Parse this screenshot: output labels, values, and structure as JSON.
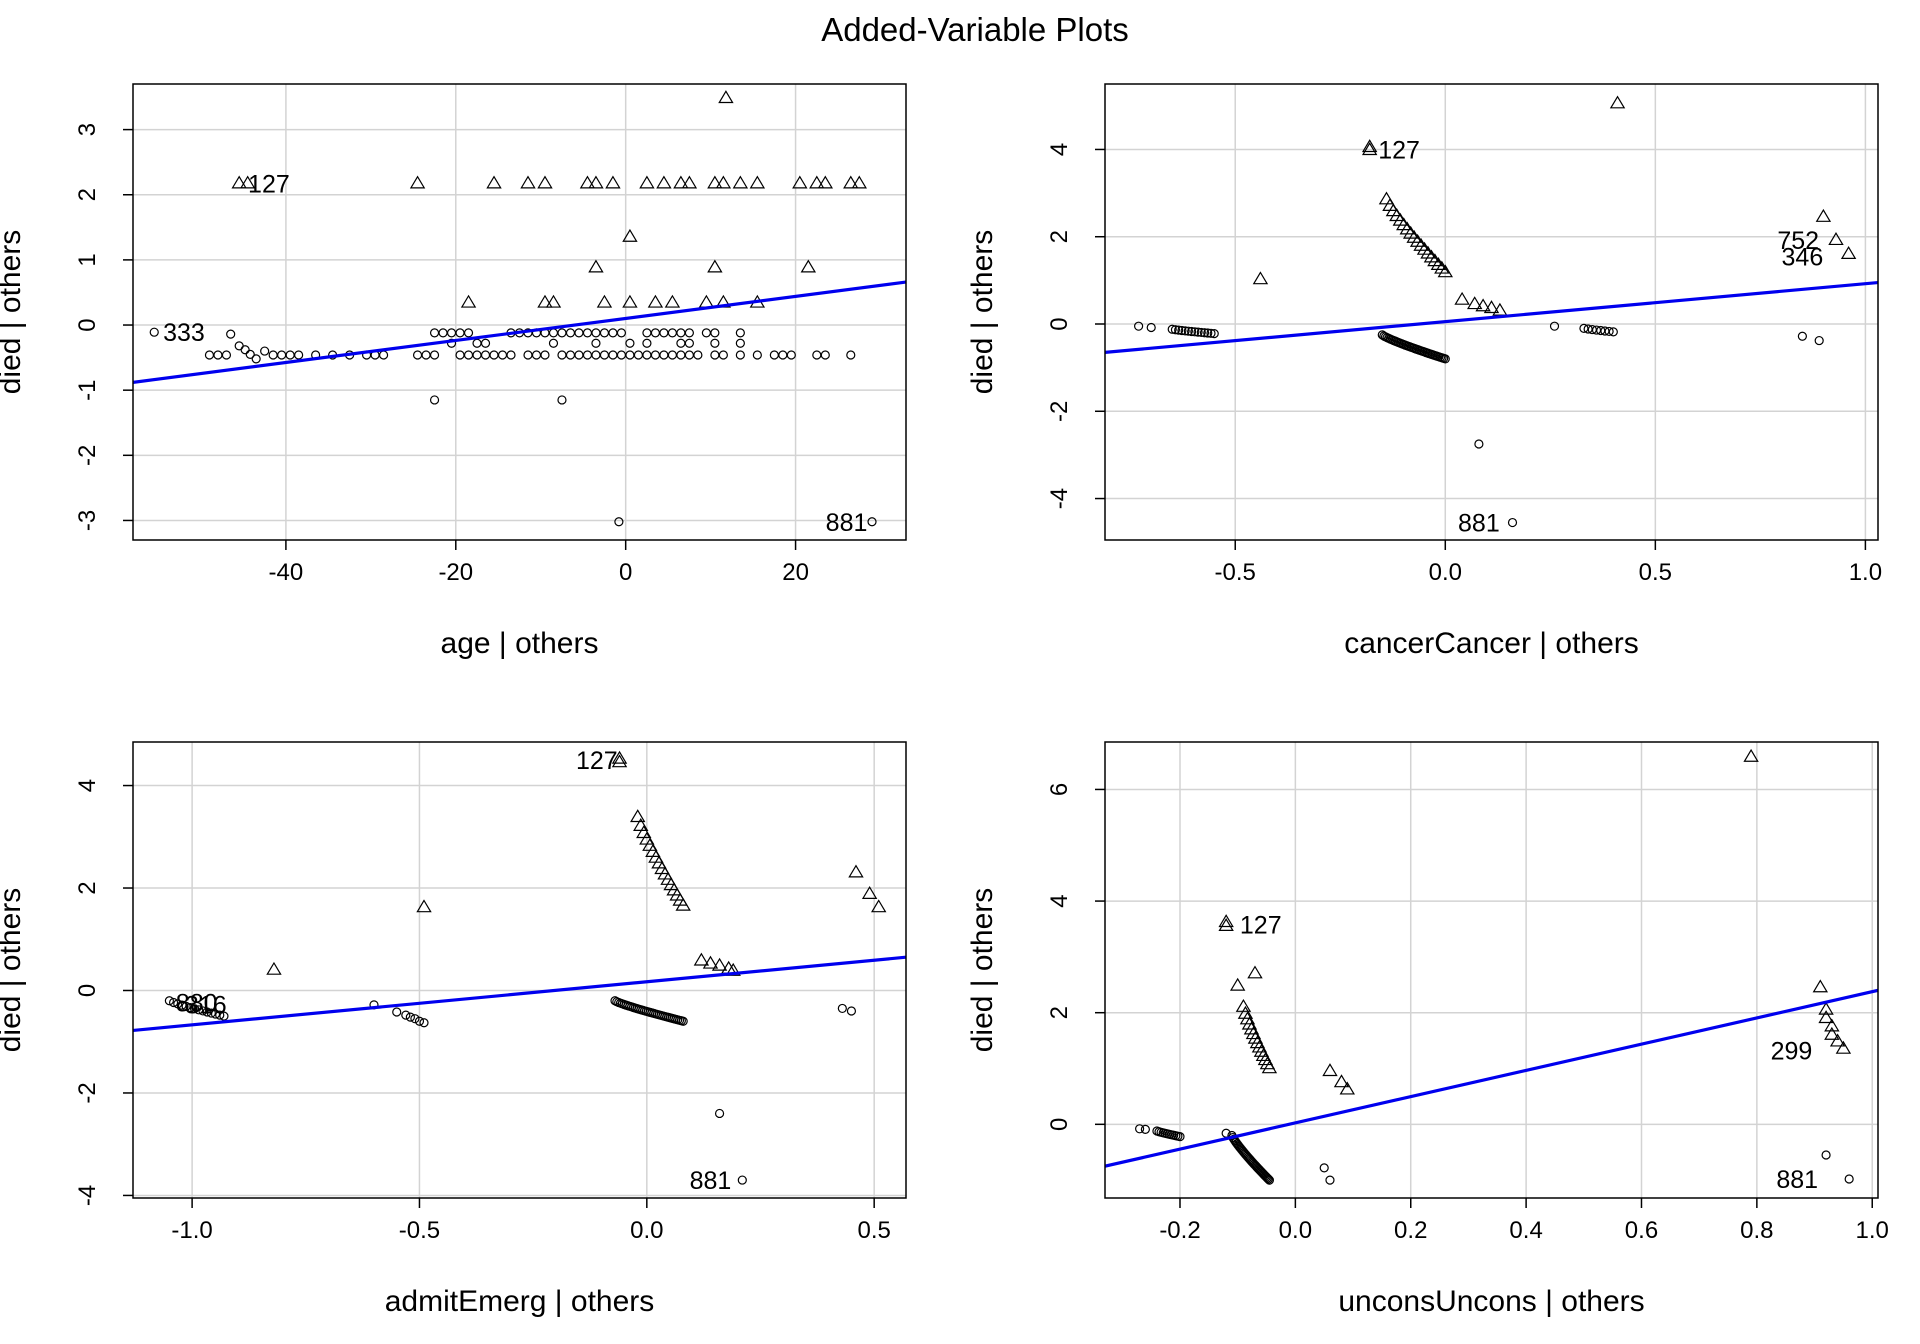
{
  "figure": {
    "title": "Added-Variable Plots",
    "marker_color": "#000000",
    "line_color": "#0000ee",
    "grid_color": "#d3d3d3",
    "legend": "none"
  },
  "chart_data": [
    {
      "type": "scatter",
      "xlabel": "age | others",
      "ylabel": "died  | others",
      "xlim": [
        -58,
        33
      ],
      "ylim": [
        -3.3,
        3.7
      ],
      "xticks": [
        -40,
        -20,
        0,
        20
      ],
      "yticks": [
        -3,
        -2,
        -1,
        0,
        1,
        2,
        3
      ],
      "grid": true,
      "fit_line": {
        "x": [
          -58,
          33
        ],
        "y": [
          -0.88,
          0.66
        ]
      },
      "annotations": [
        {
          "text": "127",
          "x": -42,
          "y": 2.17
        },
        {
          "text": "333",
          "x": -52,
          "y": -0.11
        },
        {
          "text": "881",
          "x": 26,
          "y": -3.02
        }
      ],
      "points": [
        {
          "x": -45.5,
          "y": 2.17,
          "marker": "triangle"
        },
        {
          "x": -44.5,
          "y": 2.17,
          "marker": "triangle"
        },
        {
          "x": -24.5,
          "y": 2.17,
          "marker": "triangle"
        },
        {
          "x": -15.5,
          "y": 2.17,
          "marker": "triangle"
        },
        {
          "x": -11.5,
          "y": 2.17,
          "marker": "triangle"
        },
        {
          "x": -9.5,
          "y": 2.17,
          "marker": "triangle"
        },
        {
          "x": -4.5,
          "y": 2.17,
          "marker": "triangle"
        },
        {
          "x": -3.5,
          "y": 2.17,
          "marker": "triangle"
        },
        {
          "x": -1.5,
          "y": 2.17,
          "marker": "triangle"
        },
        {
          "x": 2.5,
          "y": 2.17,
          "marker": "triangle"
        },
        {
          "x": 4.5,
          "y": 2.17,
          "marker": "triangle"
        },
        {
          "x": 6.5,
          "y": 2.17,
          "marker": "triangle"
        },
        {
          "x": 7.5,
          "y": 2.17,
          "marker": "triangle"
        },
        {
          "x": 10.5,
          "y": 2.17,
          "marker": "triangle"
        },
        {
          "x": 11.5,
          "y": 2.17,
          "marker": "triangle"
        },
        {
          "x": 13.5,
          "y": 2.17,
          "marker": "triangle"
        },
        {
          "x": 15.5,
          "y": 2.17,
          "marker": "triangle"
        },
        {
          "x": 20.5,
          "y": 2.17,
          "marker": "triangle"
        },
        {
          "x": 22.5,
          "y": 2.17,
          "marker": "triangle"
        },
        {
          "x": 23.5,
          "y": 2.17,
          "marker": "triangle"
        },
        {
          "x": 26.5,
          "y": 2.17,
          "marker": "triangle"
        },
        {
          "x": 27.5,
          "y": 2.17,
          "marker": "triangle"
        },
        {
          "x": 11.8,
          "y": 3.48,
          "marker": "triangle"
        },
        {
          "x": 0.5,
          "y": 1.35,
          "marker": "triangle"
        },
        {
          "x": -3.5,
          "y": 0.88,
          "marker": "triangle"
        },
        {
          "x": 10.5,
          "y": 0.88,
          "marker": "triangle"
        },
        {
          "x": 21.5,
          "y": 0.88,
          "marker": "triangle"
        },
        {
          "x": -18.5,
          "y": 0.34,
          "marker": "triangle"
        },
        {
          "x": -9.5,
          "y": 0.34,
          "marker": "triangle"
        },
        {
          "x": -8.5,
          "y": 0.34,
          "marker": "triangle"
        },
        {
          "x": -2.5,
          "y": 0.34,
          "marker": "triangle"
        },
        {
          "x": 0.5,
          "y": 0.34,
          "marker": "triangle"
        },
        {
          "x": 3.5,
          "y": 0.34,
          "marker": "triangle"
        },
        {
          "x": 5.5,
          "y": 0.34,
          "marker": "triangle"
        },
        {
          "x": 9.5,
          "y": 0.34,
          "marker": "triangle"
        },
        {
          "x": 11.5,
          "y": 0.34,
          "marker": "triangle"
        },
        {
          "x": 15.5,
          "y": 0.34,
          "marker": "triangle"
        },
        {
          "x": -45.5,
          "y": -0.32,
          "marker": "circle"
        },
        {
          "x": -44.8,
          "y": -0.38,
          "marker": "circle"
        },
        {
          "x": -44.2,
          "y": -0.45,
          "marker": "circle"
        },
        {
          "x": -43.5,
          "y": -0.52,
          "marker": "circle"
        },
        {
          "x": -46.5,
          "y": -0.14,
          "marker": "circle"
        },
        {
          "x": -47,
          "y": -0.46,
          "marker": "circle"
        },
        {
          "x": -48,
          "y": -0.46,
          "marker": "circle"
        },
        {
          "x": -49,
          "y": -0.46,
          "marker": "circle"
        },
        {
          "x": -42.5,
          "y": -0.4,
          "marker": "circle"
        },
        {
          "x": -41.5,
          "y": -0.46,
          "marker": "circle"
        },
        {
          "x": -55.5,
          "y": -0.11,
          "marker": "circle"
        },
        {
          "x": -22.5,
          "y": -1.15,
          "marker": "circle"
        },
        {
          "x": -7.5,
          "y": -1.15,
          "marker": "circle"
        },
        {
          "x": -0.8,
          "y": -3.02,
          "marker": "circle"
        },
        {
          "x": 29,
          "y": -3.02,
          "marker": "circle"
        }
      ],
      "circle_band_x": [
        -40.5,
        -39.5,
        -38.5,
        -36.5,
        -34.5,
        -32.5,
        -30.5,
        -29.5,
        -28.5,
        -24.5,
        -23.5,
        -22.5,
        -19.5,
        -18.5,
        -17.5,
        -16.5,
        -15.5,
        -14.5,
        -13.5,
        -11.5,
        -10.5,
        -9.5,
        -7.5,
        -6.5,
        -5.5,
        -4.5,
        -3.5,
        -2.5,
        -1.5,
        -0.5,
        0.5,
        1.5,
        2.5,
        3.5,
        4.5,
        5.5,
        6.5,
        7.5,
        8.5,
        10.5,
        11.5,
        13.5,
        15.5,
        17.5,
        18.5,
        19.5,
        22.5,
        23.5,
        26.5
      ],
      "circle_band_y": -0.46,
      "circle_row_x": [
        -22.5,
        -21.5,
        -20.5,
        -19.5,
        -18.5,
        -13.5,
        -12.5,
        -11.5,
        -10.5,
        -9.5,
        -8.5,
        -7.5,
        -6.5,
        -5.5,
        -4.5,
        -3.5,
        -2.5,
        -1.5,
        -0.5,
        2.5,
        3.5,
        4.5,
        5.5,
        6.5,
        7.5,
        9.5,
        10.5,
        13.5
      ],
      "circle_row_y": -0.12,
      "circle_row2_x": [
        -20.5,
        -17.5,
        -16.5,
        -8.5,
        -3.5,
        0.5,
        2.5,
        6.5,
        7.5,
        10.5,
        13.5
      ],
      "circle_row2_y": -0.28
    },
    {
      "type": "scatter",
      "xlabel": "cancerCancer | others",
      "ylabel": "died  | others",
      "xlim": [
        -0.81,
        1.03
      ],
      "ylim": [
        -4.95,
        5.5
      ],
      "xticks": [
        -0.5,
        0.0,
        0.5,
        1.0
      ],
      "yticks": [
        -4,
        -2,
        0,
        2,
        4
      ],
      "grid": true,
      "fit_line": {
        "x": [
          -0.81,
          1.03
        ],
        "y": [
          -0.65,
          0.95
        ]
      },
      "annotations": [
        {
          "text": "127",
          "x": -0.11,
          "y": 4.0
        },
        {
          "text": "752",
          "x": 0.84,
          "y": 1.92
        },
        {
          "text": "346",
          "x": 0.85,
          "y": 1.55
        },
        {
          "text": "881",
          "x": 0.08,
          "y": -4.55
        }
      ],
      "points": [
        {
          "x": -0.18,
          "y": 3.98,
          "marker": "triangle"
        },
        {
          "x": -0.18,
          "y": 4.05,
          "marker": "triangle"
        },
        {
          "x": 0.41,
          "y": 5.05,
          "marker": "triangle"
        },
        {
          "x": -0.44,
          "y": 1.02,
          "marker": "triangle"
        },
        {
          "x": 0.9,
          "y": 2.45,
          "marker": "triangle"
        },
        {
          "x": 0.93,
          "y": 1.92,
          "marker": "triangle"
        },
        {
          "x": 0.96,
          "y": 1.6,
          "marker": "triangle"
        },
        {
          "x": 0.04,
          "y": 0.55,
          "marker": "triangle"
        },
        {
          "x": 0.07,
          "y": 0.45,
          "marker": "triangle"
        },
        {
          "x": 0.09,
          "y": 0.4,
          "marker": "triangle"
        },
        {
          "x": 0.11,
          "y": 0.36,
          "marker": "triangle"
        },
        {
          "x": 0.13,
          "y": 0.3,
          "marker": "triangle"
        },
        {
          "x": -0.73,
          "y": -0.05,
          "marker": "circle"
        },
        {
          "x": -0.7,
          "y": -0.08,
          "marker": "circle"
        },
        {
          "x": 0.26,
          "y": -0.05,
          "marker": "circle"
        },
        {
          "x": 0.85,
          "y": -0.28,
          "marker": "circle"
        },
        {
          "x": 0.89,
          "y": -0.38,
          "marker": "circle"
        },
        {
          "x": 0.08,
          "y": -2.75,
          "marker": "circle"
        },
        {
          "x": 0.16,
          "y": -4.55,
          "marker": "circle"
        }
      ],
      "tri_arc": {
        "x_from": -0.14,
        "x_to": 0.0,
        "y_from": 2.85,
        "y_to": 1.18,
        "count": 18
      },
      "circ_arc": {
        "x_from": -0.15,
        "x_to": 0.0,
        "y_from": -0.25,
        "y_to": -0.8,
        "count": 40
      },
      "circ_cluster_left": {
        "x_from": -0.65,
        "x_to": -0.55,
        "y_from": -0.12,
        "y_to": -0.22,
        "count": 14
      },
      "circ_cluster_right": {
        "x_from": 0.33,
        "x_to": 0.4,
        "y_from": -0.1,
        "y_to": -0.18,
        "count": 8
      }
    },
    {
      "type": "scatter",
      "xlabel": "admitEmerg | others",
      "ylabel": "died  | others",
      "xlim": [
        -1.13,
        0.57
      ],
      "ylim": [
        -4.05,
        4.85
      ],
      "xticks": [
        -1.0,
        -0.5,
        0.0,
        0.5
      ],
      "yticks": [
        -4,
        -2,
        0,
        2,
        4
      ],
      "grid": true,
      "fit_line": {
        "x": [
          -1.13,
          0.57
        ],
        "y": [
          -0.78,
          0.65
        ]
      },
      "annotations": [
        {
          "text": "127",
          "x": -0.11,
          "y": 4.5
        },
        {
          "text": "880",
          "x": -0.99,
          "y": -0.23
        },
        {
          "text": "316",
          "x": -0.97,
          "y": -0.27
        },
        {
          "text": "881",
          "x": 0.14,
          "y": -3.7
        }
      ],
      "points": [
        {
          "x": -0.06,
          "y": 4.45,
          "marker": "triangle"
        },
        {
          "x": -0.06,
          "y": 4.52,
          "marker": "triangle"
        },
        {
          "x": -0.82,
          "y": 0.4,
          "marker": "triangle"
        },
        {
          "x": -0.49,
          "y": 1.62,
          "marker": "triangle"
        },
        {
          "x": 0.46,
          "y": 2.3,
          "marker": "triangle"
        },
        {
          "x": 0.49,
          "y": 1.88,
          "marker": "triangle"
        },
        {
          "x": 0.51,
          "y": 1.62,
          "marker": "triangle"
        },
        {
          "x": 0.12,
          "y": 0.58,
          "marker": "triangle"
        },
        {
          "x": 0.14,
          "y": 0.52,
          "marker": "triangle"
        },
        {
          "x": 0.16,
          "y": 0.48,
          "marker": "triangle"
        },
        {
          "x": 0.18,
          "y": 0.42,
          "marker": "triangle"
        },
        {
          "x": 0.19,
          "y": 0.38,
          "marker": "triangle"
        },
        {
          "x": -0.6,
          "y": -0.28,
          "marker": "circle"
        },
        {
          "x": -0.55,
          "y": -0.42,
          "marker": "circle"
        },
        {
          "x": -0.53,
          "y": -0.48,
          "marker": "circle"
        },
        {
          "x": -0.52,
          "y": -0.52,
          "marker": "circle"
        },
        {
          "x": -0.51,
          "y": -0.55,
          "marker": "circle"
        },
        {
          "x": -0.5,
          "y": -0.6,
          "marker": "circle"
        },
        {
          "x": -0.49,
          "y": -0.63,
          "marker": "circle"
        },
        {
          "x": 0.43,
          "y": -0.35,
          "marker": "circle"
        },
        {
          "x": 0.45,
          "y": -0.4,
          "marker": "circle"
        },
        {
          "x": 0.16,
          "y": -2.4,
          "marker": "circle"
        },
        {
          "x": 0.21,
          "y": -3.7,
          "marker": "circle"
        }
      ],
      "tri_arc": {
        "x_from": -0.02,
        "x_to": 0.08,
        "y_from": 3.38,
        "y_to": 1.65,
        "count": 16
      },
      "circ_arc": {
        "x_from": -0.07,
        "x_to": 0.08,
        "y_from": -0.2,
        "y_to": -0.6,
        "count": 38
      },
      "circ_cluster_left": {
        "x_from": -1.05,
        "x_to": -0.93,
        "y_from": -0.2,
        "y_to": -0.5,
        "count": 14
      },
      "circ_cluster_right": {
        "x_from": 0.0,
        "x_to": 0.0,
        "y_from": 0.0,
        "y_to": 0.0,
        "count": 0
      }
    },
    {
      "type": "scatter",
      "xlabel": "unconsUncons | others",
      "ylabel": "died  | others",
      "xlim": [
        -0.33,
        1.01
      ],
      "ylim": [
        -1.32,
        6.85
      ],
      "xticks": [
        -0.2,
        0.0,
        0.2,
        0.4,
        0.6,
        0.8,
        1.0
      ],
      "yticks": [
        0,
        2,
        4,
        6
      ],
      "grid": true,
      "fit_line": {
        "x": [
          -0.33,
          1.01
        ],
        "y": [
          -0.75,
          2.4
        ]
      },
      "annotations": [
        {
          "text": "127",
          "x": -0.06,
          "y": 3.58
        },
        {
          "text": "299",
          "x": 0.86,
          "y": 1.32
        },
        {
          "text": "881",
          "x": 0.87,
          "y": -0.98
        }
      ],
      "points": [
        {
          "x": -0.12,
          "y": 3.55,
          "marker": "triangle"
        },
        {
          "x": -0.12,
          "y": 3.62,
          "marker": "triangle"
        },
        {
          "x": 0.79,
          "y": 6.58,
          "marker": "triangle"
        },
        {
          "x": -0.1,
          "y": 2.48,
          "marker": "triangle"
        },
        {
          "x": -0.07,
          "y": 2.7,
          "marker": "triangle"
        },
        {
          "x": 0.06,
          "y": 0.95,
          "marker": "triangle"
        },
        {
          "x": 0.08,
          "y": 0.75,
          "marker": "triangle"
        },
        {
          "x": 0.09,
          "y": 0.62,
          "marker": "triangle"
        },
        {
          "x": 0.91,
          "y": 2.45,
          "marker": "triangle"
        },
        {
          "x": 0.92,
          "y": 2.05,
          "marker": "triangle"
        },
        {
          "x": 0.92,
          "y": 1.9,
          "marker": "triangle"
        },
        {
          "x": 0.93,
          "y": 1.75,
          "marker": "triangle"
        },
        {
          "x": 0.93,
          "y": 1.6,
          "marker": "triangle"
        },
        {
          "x": 0.94,
          "y": 1.48,
          "marker": "triangle"
        },
        {
          "x": 0.95,
          "y": 1.35,
          "marker": "triangle"
        },
        {
          "x": -0.27,
          "y": -0.08,
          "marker": "circle"
        },
        {
          "x": -0.26,
          "y": -0.09,
          "marker": "circle"
        },
        {
          "x": -0.12,
          "y": -0.16,
          "marker": "circle"
        },
        {
          "x": 0.05,
          "y": -0.78,
          "marker": "circle"
        },
        {
          "x": 0.06,
          "y": -1.0,
          "marker": "circle"
        },
        {
          "x": 0.92,
          "y": -0.55,
          "marker": "circle"
        },
        {
          "x": 0.96,
          "y": -0.98,
          "marker": "circle"
        }
      ],
      "tri_arc": {
        "x_from": -0.09,
        "x_to": -0.045,
        "y_from": 2.1,
        "y_to": 1.0,
        "count": 14
      },
      "circ_arc": {
        "x_from": -0.11,
        "x_to": -0.045,
        "y_from": -0.2,
        "y_to": -1.0,
        "count": 38
      },
      "circ_cluster_left": {
        "x_from": -0.24,
        "x_to": -0.2,
        "y_from": -0.12,
        "y_to": -0.22,
        "count": 12
      },
      "circ_cluster_right": {
        "x_from": 0.0,
        "x_to": 0.0,
        "y_from": 0.0,
        "y_to": 0.0,
        "count": 0
      }
    }
  ]
}
